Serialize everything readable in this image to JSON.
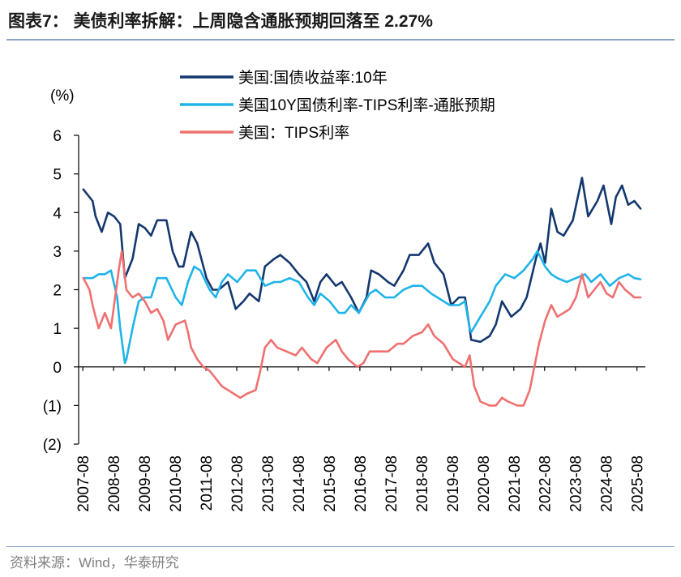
{
  "page": {
    "title": "图表7： 美债利率拆解：上周隐含通胀预期回落至 2.27%",
    "source": "资料来源：Wind，华泰研究"
  },
  "chart_data": {
    "type": "line",
    "title": "图表7： 美债利率拆解：上周隐含通胀预期回落至 2.27%",
    "ylabel": "(%)",
    "xlabel": "",
    "ylim": [
      -2,
      6
    ],
    "yticks": [
      6,
      5,
      4,
      3,
      2,
      1,
      0,
      -1,
      -2
    ],
    "ytick_labels": [
      "6",
      "5",
      "4",
      "3",
      "2",
      "1",
      "0",
      "(1)",
      "(2)"
    ],
    "x_tick_labels": [
      "2007-08",
      "2008-08",
      "2009-08",
      "2010-08",
      "2011-08",
      "2012-08",
      "2013-08",
      "2014-08",
      "2015-08",
      "2016-08",
      "2017-08",
      "2018-08",
      "2019-08",
      "2020-08",
      "2021-08",
      "2022-08",
      "2023-08",
      "2024-08",
      "2025-08"
    ],
    "x_range": [
      2007.58,
      2025.75
    ],
    "legend_position": "top",
    "series": [
      {
        "name": "美国:国债收益率:10年",
        "color": "#14386e",
        "points": [
          [
            2007.6,
            4.6
          ],
          [
            2007.9,
            4.3
          ],
          [
            2008.0,
            3.9
          ],
          [
            2008.2,
            3.5
          ],
          [
            2008.4,
            4.0
          ],
          [
            2008.6,
            3.9
          ],
          [
            2008.8,
            3.7
          ],
          [
            2008.95,
            2.3
          ],
          [
            2009.0,
            2.4
          ],
          [
            2009.2,
            2.8
          ],
          [
            2009.4,
            3.7
          ],
          [
            2009.6,
            3.6
          ],
          [
            2009.8,
            3.4
          ],
          [
            2010.0,
            3.8
          ],
          [
            2010.3,
            3.8
          ],
          [
            2010.5,
            3.0
          ],
          [
            2010.7,
            2.6
          ],
          [
            2010.85,
            2.6
          ],
          [
            2011.1,
            3.5
          ],
          [
            2011.3,
            3.2
          ],
          [
            2011.6,
            2.3
          ],
          [
            2011.8,
            2.0
          ],
          [
            2012.0,
            2.0
          ],
          [
            2012.3,
            2.2
          ],
          [
            2012.55,
            1.5
          ],
          [
            2012.8,
            1.7
          ],
          [
            2013.0,
            1.9
          ],
          [
            2013.3,
            1.7
          ],
          [
            2013.5,
            2.6
          ],
          [
            2013.8,
            2.8
          ],
          [
            2014.0,
            2.9
          ],
          [
            2014.3,
            2.7
          ],
          [
            2014.6,
            2.4
          ],
          [
            2014.85,
            2.2
          ],
          [
            2015.1,
            1.7
          ],
          [
            2015.3,
            2.2
          ],
          [
            2015.5,
            2.4
          ],
          [
            2015.8,
            2.1
          ],
          [
            2016.0,
            2.2
          ],
          [
            2016.3,
            1.8
          ],
          [
            2016.55,
            1.4
          ],
          [
            2016.8,
            1.8
          ],
          [
            2016.95,
            2.5
          ],
          [
            2017.2,
            2.4
          ],
          [
            2017.5,
            2.2
          ],
          [
            2017.7,
            2.1
          ],
          [
            2018.0,
            2.5
          ],
          [
            2018.2,
            2.9
          ],
          [
            2018.5,
            2.9
          ],
          [
            2018.8,
            3.2
          ],
          [
            2019.0,
            2.7
          ],
          [
            2019.3,
            2.4
          ],
          [
            2019.55,
            1.6
          ],
          [
            2019.8,
            1.8
          ],
          [
            2020.0,
            1.8
          ],
          [
            2020.15,
            1.0
          ],
          [
            2020.2,
            0.7
          ],
          [
            2020.5,
            0.65
          ],
          [
            2020.8,
            0.8
          ],
          [
            2021.0,
            1.1
          ],
          [
            2021.2,
            1.7
          ],
          [
            2021.5,
            1.3
          ],
          [
            2021.8,
            1.5
          ],
          [
            2022.0,
            1.8
          ],
          [
            2022.3,
            2.8
          ],
          [
            2022.45,
            3.2
          ],
          [
            2022.6,
            2.7
          ],
          [
            2022.8,
            4.1
          ],
          [
            2023.0,
            3.5
          ],
          [
            2023.2,
            3.4
          ],
          [
            2023.5,
            3.8
          ],
          [
            2023.8,
            4.9
          ],
          [
            2024.0,
            3.9
          ],
          [
            2024.3,
            4.3
          ],
          [
            2024.5,
            4.7
          ],
          [
            2024.75,
            3.7
          ],
          [
            2024.9,
            4.4
          ],
          [
            2025.1,
            4.7
          ],
          [
            2025.3,
            4.2
          ],
          [
            2025.5,
            4.3
          ],
          [
            2025.7,
            4.1
          ]
        ]
      },
      {
        "name": "美国10Y国债利率-TIPS利率-通胀预期",
        "color": "#1fb4e8",
        "points": [
          [
            2007.6,
            2.3
          ],
          [
            2007.9,
            2.3
          ],
          [
            2008.1,
            2.4
          ],
          [
            2008.3,
            2.4
          ],
          [
            2008.5,
            2.5
          ],
          [
            2008.7,
            1.8
          ],
          [
            2008.8,
            1.0
          ],
          [
            2008.95,
            0.1
          ],
          [
            2009.0,
            0.2
          ],
          [
            2009.2,
            1.0
          ],
          [
            2009.4,
            1.7
          ],
          [
            2009.6,
            1.8
          ],
          [
            2009.8,
            1.8
          ],
          [
            2010.0,
            2.3
          ],
          [
            2010.3,
            2.3
          ],
          [
            2010.6,
            1.8
          ],
          [
            2010.8,
            1.6
          ],
          [
            2011.0,
            2.2
          ],
          [
            2011.2,
            2.6
          ],
          [
            2011.4,
            2.5
          ],
          [
            2011.7,
            2.0
          ],
          [
            2011.9,
            1.8
          ],
          [
            2012.1,
            2.2
          ],
          [
            2012.3,
            2.4
          ],
          [
            2012.6,
            2.2
          ],
          [
            2012.9,
            2.5
          ],
          [
            2013.2,
            2.5
          ],
          [
            2013.5,
            2.1
          ],
          [
            2013.8,
            2.2
          ],
          [
            2014.0,
            2.2
          ],
          [
            2014.3,
            2.3
          ],
          [
            2014.6,
            2.2
          ],
          [
            2014.9,
            1.8
          ],
          [
            2015.1,
            1.6
          ],
          [
            2015.3,
            1.9
          ],
          [
            2015.6,
            1.7
          ],
          [
            2015.9,
            1.4
          ],
          [
            2016.1,
            1.4
          ],
          [
            2016.3,
            1.6
          ],
          [
            2016.55,
            1.4
          ],
          [
            2016.9,
            1.9
          ],
          [
            2017.1,
            2.0
          ],
          [
            2017.4,
            1.8
          ],
          [
            2017.7,
            1.8
          ],
          [
            2018.0,
            2.0
          ],
          [
            2018.3,
            2.1
          ],
          [
            2018.6,
            2.1
          ],
          [
            2018.9,
            1.9
          ],
          [
            2019.1,
            1.8
          ],
          [
            2019.5,
            1.6
          ],
          [
            2019.8,
            1.6
          ],
          [
            2020.0,
            1.7
          ],
          [
            2020.15,
            1.0
          ],
          [
            2020.2,
            0.9
          ],
          [
            2020.5,
            1.3
          ],
          [
            2020.8,
            1.7
          ],
          [
            2021.0,
            2.1
          ],
          [
            2021.3,
            2.4
          ],
          [
            2021.6,
            2.3
          ],
          [
            2021.9,
            2.5
          ],
          [
            2022.2,
            2.8
          ],
          [
            2022.35,
            3.0
          ],
          [
            2022.6,
            2.6
          ],
          [
            2022.8,
            2.4
          ],
          [
            2023.0,
            2.3
          ],
          [
            2023.3,
            2.2
          ],
          [
            2023.6,
            2.3
          ],
          [
            2023.9,
            2.4
          ],
          [
            2024.1,
            2.2
          ],
          [
            2024.4,
            2.4
          ],
          [
            2024.7,
            2.1
          ],
          [
            2025.0,
            2.3
          ],
          [
            2025.3,
            2.4
          ],
          [
            2025.5,
            2.3
          ],
          [
            2025.7,
            2.27
          ]
        ]
      },
      {
        "name": "美国：TIPS利率",
        "color": "#f07070",
        "points": [
          [
            2007.6,
            2.3
          ],
          [
            2007.8,
            2.0
          ],
          [
            2007.9,
            1.6
          ],
          [
            2008.0,
            1.3
          ],
          [
            2008.1,
            1.0
          ],
          [
            2008.3,
            1.4
          ],
          [
            2008.5,
            1.0
          ],
          [
            2008.6,
            1.6
          ],
          [
            2008.75,
            2.5
          ],
          [
            2008.85,
            3.0
          ],
          [
            2009.0,
            2.0
          ],
          [
            2009.2,
            1.8
          ],
          [
            2009.4,
            1.9
          ],
          [
            2009.6,
            1.7
          ],
          [
            2009.8,
            1.4
          ],
          [
            2010.0,
            1.5
          ],
          [
            2010.2,
            1.2
          ],
          [
            2010.35,
            0.7
          ],
          [
            2010.6,
            1.1
          ],
          [
            2010.9,
            1.2
          ],
          [
            2011.0,
            0.9
          ],
          [
            2011.1,
            0.5
          ],
          [
            2011.3,
            0.2
          ],
          [
            2011.5,
            0.0
          ],
          [
            2011.7,
            -0.1
          ],
          [
            2011.9,
            -0.3
          ],
          [
            2012.1,
            -0.5
          ],
          [
            2012.3,
            -0.6
          ],
          [
            2012.5,
            -0.7
          ],
          [
            2012.7,
            -0.8
          ],
          [
            2012.9,
            -0.7
          ],
          [
            2013.2,
            -0.6
          ],
          [
            2013.35,
            -0.1
          ],
          [
            2013.5,
            0.5
          ],
          [
            2013.7,
            0.7
          ],
          [
            2013.9,
            0.5
          ],
          [
            2014.2,
            0.4
          ],
          [
            2014.5,
            0.3
          ],
          [
            2014.7,
            0.5
          ],
          [
            2015.0,
            0.2
          ],
          [
            2015.2,
            0.1
          ],
          [
            2015.5,
            0.5
          ],
          [
            2015.8,
            0.7
          ],
          [
            2016.0,
            0.4
          ],
          [
            2016.2,
            0.2
          ],
          [
            2016.5,
            0.0
          ],
          [
            2016.7,
            0.1
          ],
          [
            2016.9,
            0.4
          ],
          [
            2017.2,
            0.4
          ],
          [
            2017.5,
            0.4
          ],
          [
            2017.8,
            0.6
          ],
          [
            2018.0,
            0.6
          ],
          [
            2018.3,
            0.8
          ],
          [
            2018.6,
            0.9
          ],
          [
            2018.8,
            1.1
          ],
          [
            2019.0,
            0.8
          ],
          [
            2019.3,
            0.6
          ],
          [
            2019.6,
            0.2
          ],
          [
            2019.8,
            0.1
          ],
          [
            2020.0,
            0.0
          ],
          [
            2020.15,
            0.3
          ],
          [
            2020.3,
            -0.5
          ],
          [
            2020.5,
            -0.9
          ],
          [
            2020.8,
            -1.0
          ],
          [
            2021.0,
            -1.0
          ],
          [
            2021.2,
            -0.8
          ],
          [
            2021.4,
            -0.9
          ],
          [
            2021.7,
            -1.0
          ],
          [
            2021.9,
            -1.0
          ],
          [
            2022.1,
            -0.6
          ],
          [
            2022.25,
            0.0
          ],
          [
            2022.4,
            0.6
          ],
          [
            2022.6,
            1.2
          ],
          [
            2022.8,
            1.6
          ],
          [
            2023.0,
            1.3
          ],
          [
            2023.2,
            1.4
          ],
          [
            2023.4,
            1.5
          ],
          [
            2023.6,
            1.8
          ],
          [
            2023.8,
            2.4
          ],
          [
            2024.0,
            1.8
          ],
          [
            2024.2,
            2.0
          ],
          [
            2024.4,
            2.2
          ],
          [
            2024.6,
            1.9
          ],
          [
            2024.8,
            1.8
          ],
          [
            2025.0,
            2.2
          ],
          [
            2025.2,
            2.0
          ],
          [
            2025.5,
            1.8
          ],
          [
            2025.7,
            1.8
          ]
        ]
      }
    ]
  }
}
